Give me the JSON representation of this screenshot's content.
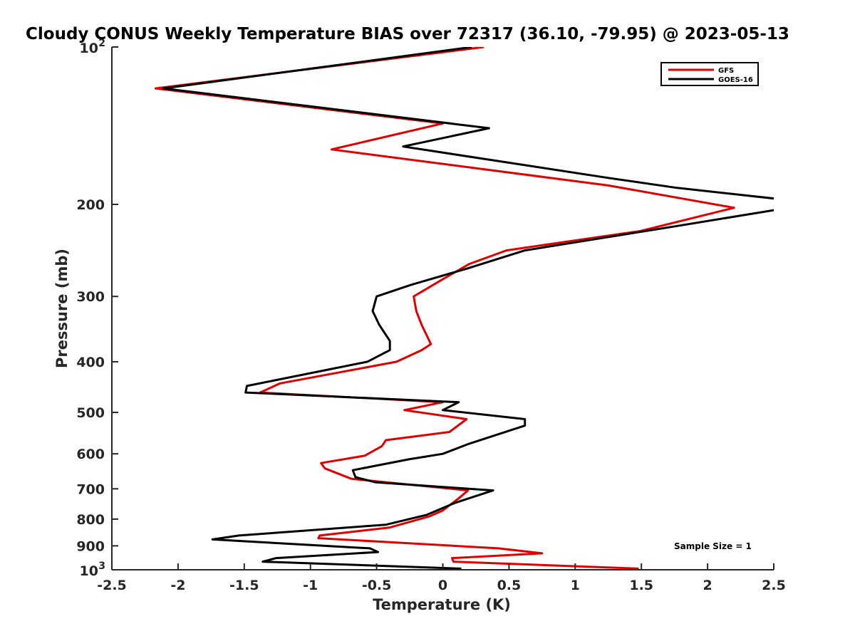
{
  "chart_data": {
    "type": "line",
    "title": "Cloudy CONUS Weekly Temperature BIAS over 72317 (36.10, -79.95) @ 2023-05-13",
    "xlabel": "Temperature (K)",
    "ylabel": "Pressure (mb)",
    "xlim": [
      -2.5,
      2.5
    ],
    "ylim": [
      100,
      1000
    ],
    "y_scale": "log",
    "y_direction": "reversed",
    "x_ticks": [
      "-2.5",
      "-2",
      "-1.5",
      "-1",
      "-0.5",
      "0",
      "0.5",
      "1",
      "1.5",
      "2",
      "2.5"
    ],
    "y_ticks": [
      {
        "value": 100,
        "label": "10",
        "sup": "2"
      },
      {
        "value": 200,
        "label": "200",
        "sup": ""
      },
      {
        "value": 300,
        "label": "300",
        "sup": ""
      },
      {
        "value": 400,
        "label": "400",
        "sup": ""
      },
      {
        "value": 500,
        "label": "500",
        "sup": ""
      },
      {
        "value": 600,
        "label": "600",
        "sup": ""
      },
      {
        "value": 700,
        "label": "700",
        "sup": ""
      },
      {
        "value": 800,
        "label": "800",
        "sup": ""
      },
      {
        "value": 900,
        "label": "900",
        "sup": ""
      },
      {
        "value": 1000,
        "label": "10",
        "sup": "3"
      }
    ],
    "grid": false,
    "legend_position": "top-right",
    "annotation": "Sample Size = 1",
    "series": [
      {
        "name": "GFS",
        "color": "#e00000",
        "points": [
          [
            0.31,
            100
          ],
          [
            -2.17,
            120
          ],
          [
            0.0,
            140
          ],
          [
            -0.84,
            157
          ],
          [
            1.25,
            184
          ],
          [
            2.2,
            203
          ],
          [
            1.49,
            225
          ],
          [
            0.48,
            245
          ],
          [
            0.2,
            260
          ],
          [
            -0.02,
            280
          ],
          [
            -0.22,
            300
          ],
          [
            -0.2,
            320
          ],
          [
            -0.16,
            340
          ],
          [
            -0.09,
            370
          ],
          [
            -0.16,
            380
          ],
          [
            -0.35,
            400
          ],
          [
            -1.23,
            440
          ],
          [
            -1.38,
            458
          ],
          [
            0.0,
            478
          ],
          [
            -0.29,
            495
          ],
          [
            0.18,
            515
          ],
          [
            0.05,
            545
          ],
          [
            -0.43,
            565
          ],
          [
            -0.46,
            580
          ],
          [
            -0.59,
            605
          ],
          [
            -0.92,
            625
          ],
          [
            -0.89,
            640
          ],
          [
            -0.69,
            670
          ],
          [
            0.19,
            705
          ],
          [
            0.12,
            730
          ],
          [
            0.0,
            770
          ],
          [
            -0.1,
            790
          ],
          [
            -0.4,
            830
          ],
          [
            -0.93,
            860
          ],
          [
            -0.94,
            870
          ],
          [
            0.42,
            910
          ],
          [
            0.75,
            930
          ],
          [
            0.07,
            950
          ],
          [
            0.08,
            965
          ],
          [
            1.48,
            995
          ]
        ]
      },
      {
        "name": "GOES-16",
        "color": "#000000",
        "points": [
          [
            0.22,
            100
          ],
          [
            -2.11,
            120
          ],
          [
            0.35,
            143
          ],
          [
            -0.3,
            155
          ],
          [
            1.25,
            178
          ],
          [
            1.77,
            186
          ],
          [
            2.51,
            195
          ],
          [
            2.51,
            205
          ],
          [
            1.77,
            220
          ],
          [
            0.62,
            245
          ],
          [
            0.19,
            265
          ],
          [
            -0.24,
            285
          ],
          [
            -0.5,
            300
          ],
          [
            -0.53,
            320
          ],
          [
            -0.48,
            340
          ],
          [
            -0.4,
            365
          ],
          [
            -0.4,
            380
          ],
          [
            -0.57,
            400
          ],
          [
            -1.48,
            445
          ],
          [
            -1.49,
            458
          ],
          [
            0.12,
            478
          ],
          [
            0.0,
            495
          ],
          [
            0.62,
            515
          ],
          [
            0.62,
            530
          ],
          [
            0.19,
            575
          ],
          [
            0.0,
            600
          ],
          [
            -0.26,
            615
          ],
          [
            -0.68,
            645
          ],
          [
            -0.66,
            665
          ],
          [
            -0.51,
            680
          ],
          [
            0.38,
            705
          ],
          [
            0.09,
            745
          ],
          [
            -0.12,
            785
          ],
          [
            -0.43,
            820
          ],
          [
            -1.54,
            860
          ],
          [
            -1.74,
            875
          ],
          [
            -0.55,
            910
          ],
          [
            -0.49,
            925
          ],
          [
            -1.26,
            950
          ],
          [
            -1.36,
            965
          ],
          [
            0.14,
            995
          ]
        ]
      }
    ]
  }
}
